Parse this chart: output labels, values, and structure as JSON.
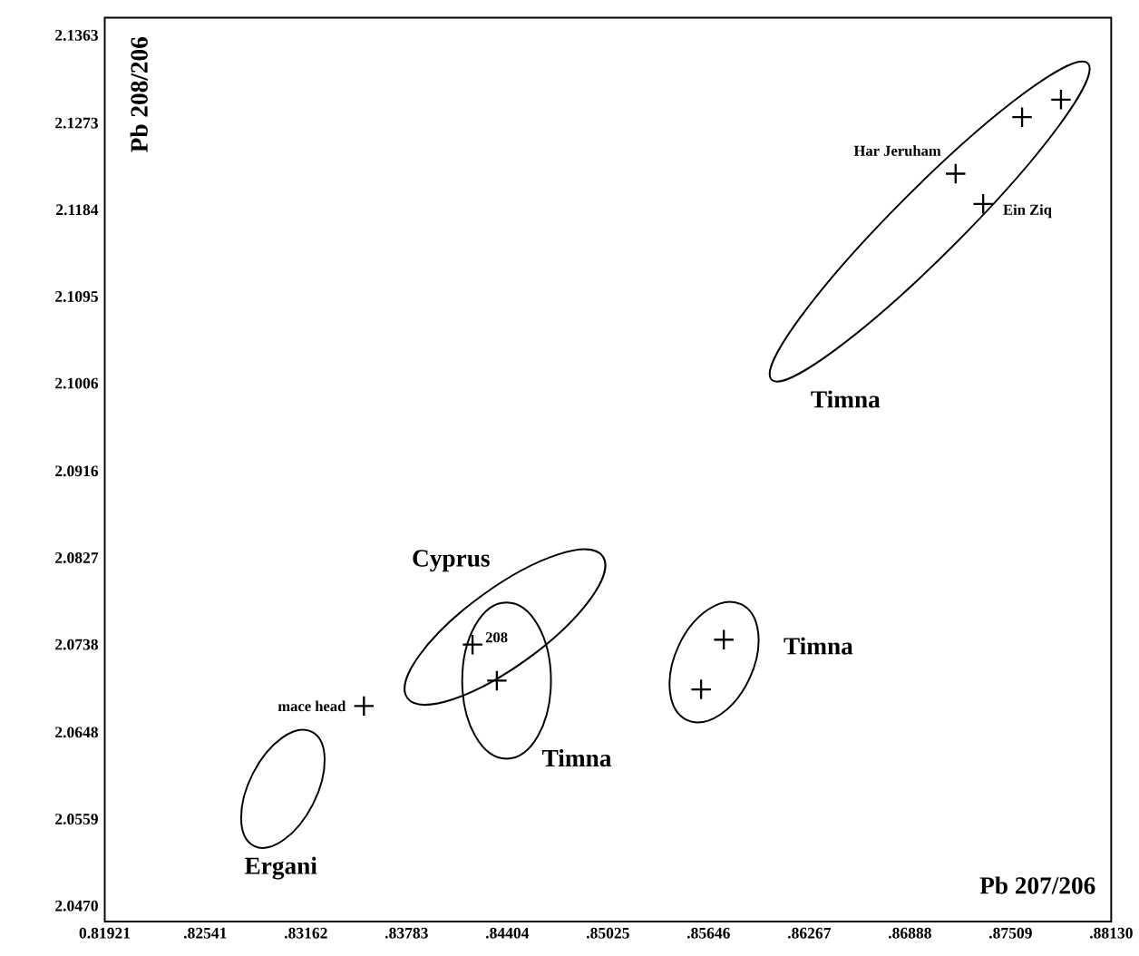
{
  "chart_data": {
    "type": "scatter",
    "xlabel": "Pb 207/206",
    "ylabel": "Pb 208/206",
    "x": [
      0.8352,
      0.8419,
      0.8434,
      0.8574,
      0.856,
      0.8717,
      0.8734,
      0.8758,
      0.8782
    ],
    "values": [
      2.0675,
      2.0738,
      2.0701,
      2.0743,
      2.0692,
      2.1221,
      2.119,
      2.1279,
      2.1297
    ],
    "color": "#000000",
    "marker": "cross",
    "xlim": [
      0.81921,
      0.8813
    ],
    "ylim": [
      2.0454,
      2.1381
    ],
    "xticks": [
      0.81921,
      {
        "value": 0.82541,
        "label": ".82541"
      },
      {
        "value": 0.83162,
        "label": ".83162"
      },
      {
        "value": 0.83783,
        "label": ".83783"
      },
      {
        "value": 0.84404,
        "label": ".84404"
      },
      {
        "value": 0.85025,
        "label": ".85025"
      },
      {
        "value": 0.85646,
        "label": ".85646"
      },
      {
        "value": 0.86267,
        "label": ".86267"
      },
      {
        "value": 0.86888,
        "label": ".86888"
      },
      {
        "value": 0.87509,
        "label": ".87509"
      },
      {
        "value": 0.8813,
        "label": ".88130"
      }
    ],
    "yticks": [
      {
        "value": 2.047,
        "label": "2.0470"
      },
      2.0559,
      2.0648,
      2.0738,
      2.0827,
      2.0916,
      2.1006,
      2.1095,
      2.1184,
      2.1273,
      2.1363
    ],
    "grid": false,
    "annotations": [
      {
        "text": "mace head",
        "x": 0.8352,
        "y": 2.0675
      },
      {
        "text": "208",
        "x": 0.8419,
        "y": 2.0738
      },
      {
        "text": "Har Jeruham",
        "x": 0.8717,
        "y": 2.1221
      },
      {
        "text": "Ein Ziq",
        "x": 0.8734,
        "y": 2.119
      },
      "Cyprus",
      "Timna",
      "Timna",
      "Timna",
      "Ergani"
    ]
  }
}
